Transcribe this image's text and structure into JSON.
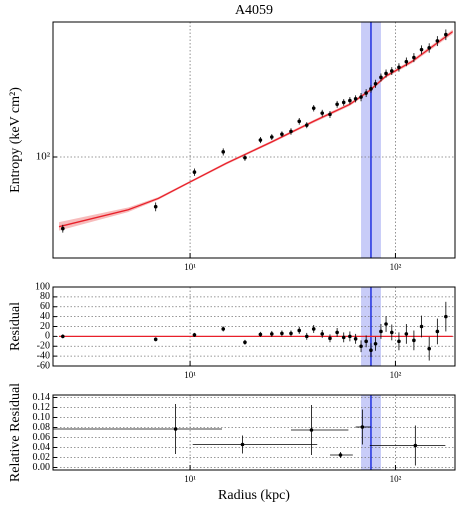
{
  "chart_data": [
    {
      "type": "scatter",
      "title": "A4059",
      "ylabel": "Entropy (keV cm²)",
      "xlog": true,
      "ylog": true,
      "xlim": [
        2.15,
        195
      ],
      "ylim": [
        26.5,
        590
      ],
      "xticks": [
        {
          "value": 10,
          "label": "10¹"
        },
        {
          "value": 100,
          "label": "10²"
        }
      ],
      "yticks": [
        {
          "value": 100,
          "label": "10²"
        }
      ],
      "grid": true,
      "color": "#000000",
      "x": [
        2.4,
        6.8,
        10.5,
        14.5,
        18.5,
        22,
        25,
        28,
        31,
        34,
        37,
        40,
        44,
        48,
        52,
        56,
        60,
        64,
        68,
        72,
        76,
        80,
        85,
        90,
        96,
        104,
        113,
        123,
        134,
        146,
        160,
        176
      ],
      "values": [
        39,
        52,
        82,
        107,
        99,
        125,
        130,
        135,
        140,
        160,
        152,
        190,
        178,
        175,
        200,
        205,
        210,
        215,
        220,
        232,
        245,
        262,
        285,
        300,
        310,
        325,
        350,
        370,
        410,
        420,
        460,
        500
      ],
      "yerr": [
        2,
        3,
        4,
        5,
        4,
        5,
        5,
        5,
        6,
        7,
        6,
        8,
        8,
        8,
        9,
        9,
        10,
        10,
        12,
        12,
        12,
        14,
        15,
        16,
        16,
        18,
        20,
        22,
        24,
        26,
        30,
        35
      ],
      "model": {
        "color": "#e8202a",
        "band_color": "#f4a0a0",
        "x": [
          2.3,
          5,
          7,
          10,
          15,
          25,
          40,
          60,
          75,
          90,
          120,
          190
        ],
        "values": [
          40,
          50,
          58,
          72,
          92,
          122,
          160,
          200,
          240,
          290,
          350,
          520
        ],
        "lower": [
          38,
          48.5,
          57,
          71,
          90.5,
          120,
          157,
          196,
          235,
          284,
          342,
          505
        ],
        "upper": [
          42.5,
          51.5,
          59,
          73,
          93.5,
          124,
          163,
          204,
          245,
          296,
          358,
          535
        ]
      },
      "vline": {
        "x": 76,
        "band": [
          68,
          85
        ],
        "color": "#2030e0",
        "band_color": "#c8ccf8"
      }
    },
    {
      "type": "scatter",
      "ylabel": "Residual",
      "xlog": true,
      "ylog": false,
      "xlim": [
        2.15,
        195
      ],
      "ylim": [
        -60,
        100
      ],
      "xticks": [
        {
          "value": 10,
          "label": "10¹"
        },
        {
          "value": 100,
          "label": "10²"
        }
      ],
      "yticks": [
        -60,
        -40,
        -20,
        0,
        20,
        40,
        60,
        80,
        100
      ],
      "grid": true,
      "color": "#000000",
      "x": [
        2.4,
        6.8,
        10.5,
        14.5,
        18.5,
        22,
        25,
        28,
        31,
        34,
        37,
        40,
        44,
        48,
        52,
        56,
        60,
        64,
        68,
        72,
        76,
        80,
        85,
        90,
        96,
        104,
        113,
        123,
        134,
        146,
        160,
        176
      ],
      "values": [
        0,
        -6,
        3,
        15,
        -12,
        4,
        5,
        6,
        6,
        12,
        0,
        15,
        5,
        -4,
        8,
        -2,
        0,
        -5,
        -20,
        -10,
        -28,
        -15,
        10,
        25,
        8,
        -10,
        5,
        -8,
        20,
        -25,
        10,
        40
      ],
      "yerr": [
        4,
        4,
        4,
        5,
        5,
        5,
        6,
        6,
        6,
        7,
        7,
        8,
        8,
        8,
        9,
        10,
        10,
        10,
        12,
        12,
        14,
        14,
        15,
        16,
        16,
        18,
        20,
        20,
        22,
        24,
        26,
        30
      ],
      "model": {
        "color": "#e8202a",
        "x": [
          2.3,
          190
        ],
        "values": [
          0,
          0
        ]
      },
      "vline": {
        "x": 76,
        "band": [
          68,
          85
        ],
        "color": "#2030e0",
        "band_color": "#c8ccf8"
      }
    },
    {
      "type": "scatter",
      "ylabel": "Relative Residual",
      "xlabel": "Radius (kpc)",
      "xlog": true,
      "ylog": false,
      "xlim": [
        2.15,
        195
      ],
      "ylim": [
        -0.005,
        0.145
      ],
      "xticks": [
        {
          "value": 10,
          "label": "10¹"
        },
        {
          "value": 100,
          "label": "10²"
        }
      ],
      "yticks": [
        {
          "value": 0,
          "label": "0.00"
        },
        {
          "value": 0.02,
          "label": "0.02"
        },
        {
          "value": 0.04,
          "label": "0.04"
        },
        {
          "value": 0.06,
          "label": "0.06"
        },
        {
          "value": 0.08,
          "label": "0.08"
        },
        {
          "value": 0.1,
          "label": "0.10"
        },
        {
          "value": 0.12,
          "label": "0.12"
        },
        {
          "value": 0.14,
          "label": "0.14"
        }
      ],
      "grid": true,
      "color": "#000000",
      "x": [
        8.5,
        18,
        39,
        54,
        69,
        125
      ],
      "x_low": [
        2.15,
        10.3,
        31,
        48,
        64,
        75
      ],
      "x_high": [
        14.3,
        41.6,
        59,
        62,
        76,
        175
      ],
      "values": [
        0.077,
        0.046,
        0.075,
        0.025,
        0.081,
        0.044
      ],
      "yerr": [
        0.05,
        0.018,
        0.05,
        0.006,
        0.035,
        0.04
      ],
      "vline": {
        "x": 76,
        "band": [
          68,
          85
        ],
        "color": "#2030e0",
        "band_color": "#c8ccf8"
      }
    }
  ]
}
